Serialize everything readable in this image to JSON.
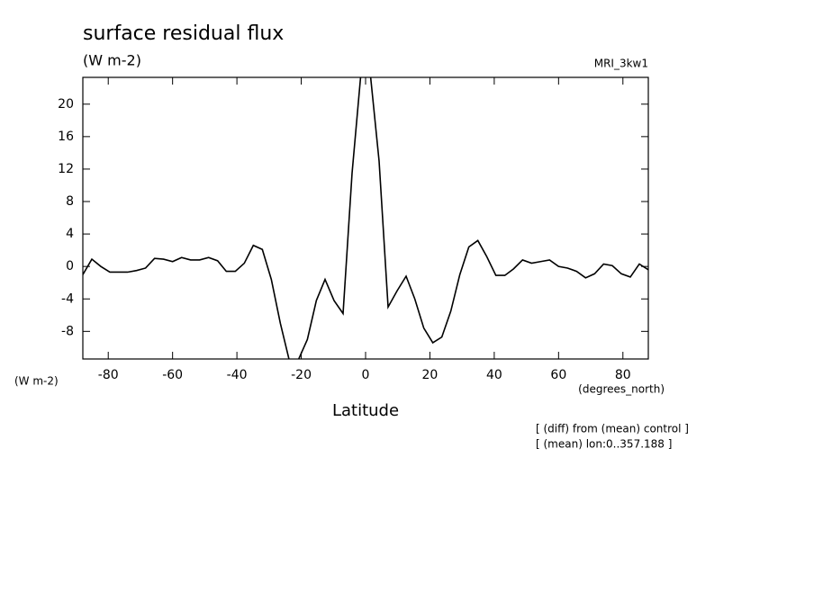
{
  "chart_data": {
    "type": "line",
    "title": "surface residual flux",
    "units": "(W m-2)",
    "subtitle": "MRI_3kw1",
    "y_label": "(W m-2)",
    "x_units": "(degrees_north)",
    "x_label": "Latitude",
    "notes": [
      "[ (diff) from (mean) control ]",
      "[ (mean) lon:0..357.188 ]"
    ],
    "x": [
      -87.9,
      -85.1,
      -82.3,
      -79.5,
      -76.7,
      -74.0,
      -71.2,
      -68.4,
      -65.6,
      -62.8,
      -60.0,
      -57.2,
      -54.4,
      -51.6,
      -48.8,
      -46.0,
      -43.3,
      -40.5,
      -37.7,
      -34.9,
      -32.1,
      -29.3,
      -26.5,
      -23.7,
      -20.9,
      -18.1,
      -15.3,
      -12.6,
      -9.8,
      -7.0,
      -4.2,
      -1.4,
      1.4,
      4.2,
      7.0,
      9.8,
      12.6,
      15.3,
      18.1,
      20.9,
      23.7,
      26.5,
      29.3,
      32.1,
      34.9,
      37.7,
      40.5,
      43.3,
      46.0,
      48.8,
      51.6,
      54.4,
      57.2,
      60.0,
      62.8,
      65.6,
      68.4,
      71.2,
      74.0,
      76.7,
      79.5,
      82.3,
      85.1,
      87.9
    ],
    "values": [
      -1.0,
      0.9,
      0.0,
      -0.7,
      -0.7,
      -0.7,
      -0.5,
      -0.2,
      1.0,
      0.9,
      0.6,
      1.1,
      0.8,
      0.8,
      1.1,
      0.7,
      -0.6,
      -0.6,
      0.4,
      2.6,
      2.1,
      -1.6,
      -7.0,
      -11.6,
      -11.5,
      -9.0,
      -4.2,
      -1.6,
      -4.2,
      -5.8,
      11.5,
      24,
      24,
      13,
      -5.0,
      -3.0,
      -1.2,
      -4.0,
      -7.6,
      -9.4,
      -8.7,
      -5.5,
      -1.0,
      2.4,
      3.2,
      1.2,
      -1.1,
      -1.1,
      -0.3,
      0.8,
      0.4,
      0.6,
      0.8,
      0.0,
      -0.2,
      -0.6,
      -1.4,
      -0.9,
      0.3,
      0.1,
      -0.9,
      -1.3,
      0.3,
      -0.4
    ],
    "color": "#000000",
    "xlim": [
      -87.9,
      87.9
    ],
    "ylim": [
      -11.4,
      23.3
    ],
    "xticks": [
      -80,
      -60,
      -40,
      -20,
      0,
      20,
      40,
      60,
      80
    ],
    "yticks": [
      -8,
      -4,
      0,
      4,
      8,
      12,
      16,
      20
    ]
  }
}
